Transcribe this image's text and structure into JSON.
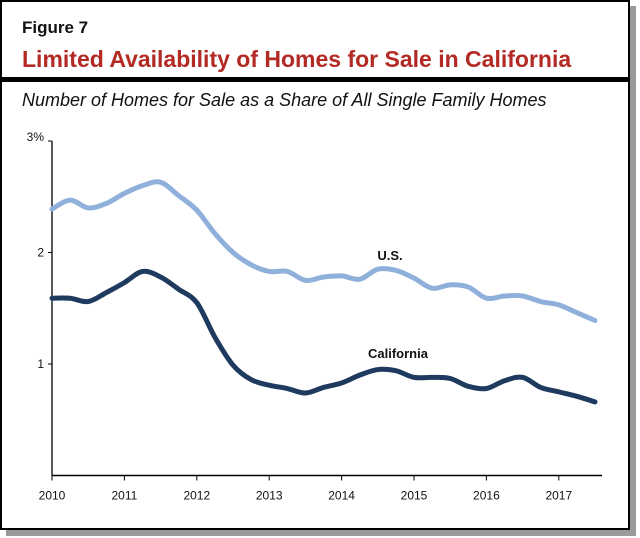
{
  "figure_label": "Figure 7",
  "title": "Limited Availability of Homes for Sale in California",
  "subtitle": "Number of Homes for Sale as a Share of All Single Family Homes",
  "chart_data": {
    "type": "line",
    "title": "Limited Availability of Homes for Sale in California",
    "subtitle": "Number of Homes for Sale as a Share of All Single Family Homes",
    "xlabel": "",
    "ylabel": "",
    "xlim": [
      2010,
      2017.6
    ],
    "ylim": [
      0,
      3
    ],
    "x_ticks": [
      2010,
      2011,
      2012,
      2013,
      2014,
      2015,
      2016,
      2017
    ],
    "x_tick_labels": [
      "2010",
      "2011",
      "2012",
      "2013",
      "2014",
      "2015",
      "2016",
      "2017"
    ],
    "y_ticks": [
      1,
      2,
      3
    ],
    "y_tick_labels": [
      "1",
      "2",
      "3%"
    ],
    "grid": false,
    "legend": "direct labels on lines",
    "x": [
      2010,
      2010.25,
      2010.5,
      2010.75,
      2011,
      2011.25,
      2011.5,
      2011.75,
      2012,
      2012.25,
      2012.5,
      2012.75,
      2013,
      2013.25,
      2013.5,
      2013.75,
      2014,
      2014.25,
      2014.5,
      2014.75,
      2015,
      2015.25,
      2015.5,
      2015.75,
      2016,
      2016.25,
      2016.5,
      2016.75,
      2017,
      2017.25,
      2017.5
    ],
    "series": [
      {
        "name": "U.S.",
        "color": "#8fb0da",
        "values": [
          2.39,
          2.47,
          2.4,
          2.44,
          2.53,
          2.6,
          2.63,
          2.51,
          2.38,
          2.17,
          2.0,
          1.89,
          1.83,
          1.83,
          1.75,
          1.78,
          1.79,
          1.76,
          1.85,
          1.84,
          1.77,
          1.68,
          1.71,
          1.69,
          1.59,
          1.61,
          1.61,
          1.56,
          1.53,
          1.46,
          1.39
        ]
      },
      {
        "name": "California",
        "color": "#1e3a5f",
        "values": [
          1.59,
          1.59,
          1.56,
          1.64,
          1.73,
          1.83,
          1.78,
          1.67,
          1.55,
          1.24,
          0.99,
          0.86,
          0.81,
          0.78,
          0.74,
          0.79,
          0.83,
          0.9,
          0.95,
          0.94,
          0.88,
          0.88,
          0.87,
          0.8,
          0.78,
          0.85,
          0.88,
          0.79,
          0.75,
          0.71,
          0.66
        ]
      }
    ]
  }
}
